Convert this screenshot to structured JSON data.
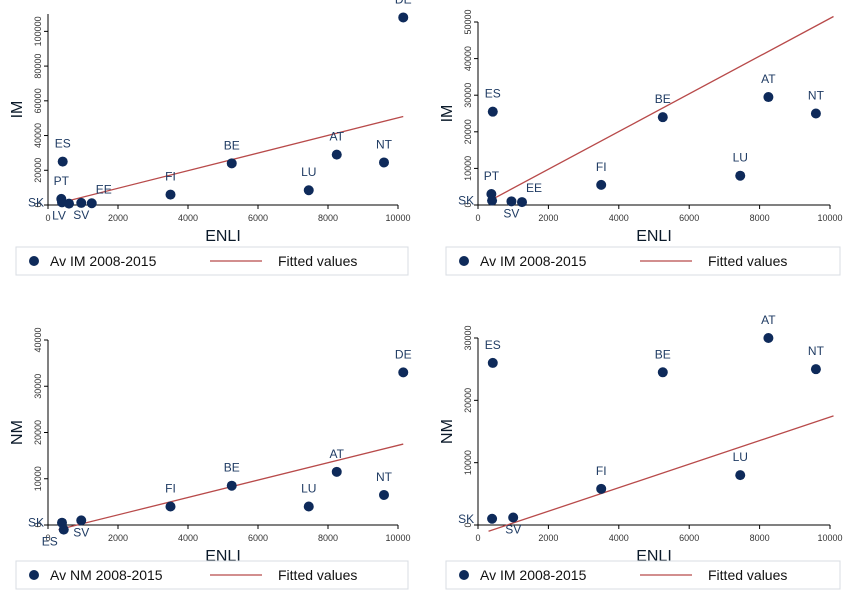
{
  "chart_data": [
    {
      "type": "scatter",
      "xlabel": "ENLI",
      "ylabel": "IM",
      "xlim": [
        0,
        10000
      ],
      "ylim": [
        0,
        110000
      ],
      "xticks": [
        0,
        2000,
        4000,
        6000,
        8000,
        10000
      ],
      "yticks": [
        0,
        20000,
        40000,
        60000,
        80000,
        100000
      ],
      "xtick_labels": [
        "0",
        "2000",
        "4000",
        "6000",
        "8000",
        "10000"
      ],
      "ytick_labels": [
        "0",
        "20000",
        "40000",
        "60000",
        "80000",
        "100000"
      ],
      "legend": [
        "Av IM 2008-2015",
        "Fitted values"
      ],
      "points": [
        {
          "label": "DE",
          "x": 10150,
          "y": 108000
        },
        {
          "label": "ES",
          "x": 420,
          "y": 25000
        },
        {
          "label": "BE",
          "x": 5250,
          "y": 24000
        },
        {
          "label": "AT",
          "x": 8250,
          "y": 29000
        },
        {
          "label": "NT",
          "x": 9600,
          "y": 24500
        },
        {
          "label": "LU",
          "x": 7450,
          "y": 8500
        },
        {
          "label": "FI",
          "x": 3500,
          "y": 6000
        },
        {
          "label": "PT",
          "x": 380,
          "y": 3500
        },
        {
          "label": "SK",
          "x": 400,
          "y": 1500
        },
        {
          "label": "LV",
          "x": 600,
          "y": 800
        },
        {
          "label": "SV",
          "x": 950,
          "y": 1200
        },
        {
          "label": "EE",
          "x": 1250,
          "y": 1000
        }
      ],
      "fit": [
        [
          300,
          1000
        ],
        [
          10150,
          51000
        ]
      ]
    },
    {
      "type": "scatter",
      "xlabel": "ENLI",
      "ylabel": "IM",
      "xlim": [
        0,
        10000
      ],
      "ylim": [
        0,
        50000
      ],
      "xticks": [
        0,
        2000,
        4000,
        6000,
        8000,
        10000
      ],
      "yticks": [
        0,
        10000,
        20000,
        30000,
        40000,
        50000
      ],
      "xtick_labels": [
        "0",
        "2000",
        "4000",
        "6000",
        "8000",
        "10000"
      ],
      "ytick_labels": [
        "0",
        "10000",
        "20000",
        "30000",
        "40000",
        "50000"
      ],
      "legend": [
        "Av IM 2008-2015",
        "Fitted values"
      ],
      "points": [
        {
          "label": "ES",
          "x": 420,
          "y": 25500
        },
        {
          "label": "BE",
          "x": 5250,
          "y": 24000
        },
        {
          "label": "AT",
          "x": 8250,
          "y": 29500
        },
        {
          "label": "NT",
          "x": 9600,
          "y": 25000
        },
        {
          "label": "LU",
          "x": 7450,
          "y": 8000
        },
        {
          "label": "FI",
          "x": 3500,
          "y": 5500
        },
        {
          "label": "PT",
          "x": 380,
          "y": 3000
        },
        {
          "label": "SK",
          "x": 400,
          "y": 1200
        },
        {
          "label": "SV",
          "x": 950,
          "y": 1000
        },
        {
          "label": "EE",
          "x": 1250,
          "y": 800
        }
      ],
      "fit": [
        [
          300,
          1000
        ],
        [
          10100,
          51500
        ]
      ]
    },
    {
      "type": "scatter",
      "xlabel": "ENLI",
      "ylabel": "NM",
      "xlim": [
        0,
        10000
      ],
      "ylim": [
        0,
        40000
      ],
      "xticks": [
        0,
        2000,
        4000,
        6000,
        8000,
        10000
      ],
      "yticks": [
        0,
        10000,
        20000,
        30000,
        40000
      ],
      "xtick_labels": [
        "0",
        "2000",
        "4000",
        "6000",
        "8000",
        "10000"
      ],
      "ytick_labels": [
        "0",
        "10000",
        "20000",
        "30000",
        "40000"
      ],
      "legend": [
        "Av NM 2008-2015",
        "Fitted values"
      ],
      "points": [
        {
          "label": "DE",
          "x": 10150,
          "y": 33000
        },
        {
          "label": "AT",
          "x": 8250,
          "y": 11500
        },
        {
          "label": "BE",
          "x": 5250,
          "y": 8500
        },
        {
          "label": "NT",
          "x": 9600,
          "y": 6500
        },
        {
          "label": "FI",
          "x": 3500,
          "y": 4000
        },
        {
          "label": "LU",
          "x": 7450,
          "y": 4000
        },
        {
          "label": "SK",
          "x": 400,
          "y": 500
        },
        {
          "label": "ES",
          "x": 450,
          "y": -1000
        },
        {
          "label": "SV",
          "x": 950,
          "y": 1000
        }
      ],
      "fit": [
        [
          300,
          -1000
        ],
        [
          10150,
          17500
        ]
      ]
    },
    {
      "type": "scatter",
      "xlabel": "ENLI",
      "ylabel": "NM",
      "xlim": [
        0,
        10000
      ],
      "ylim": [
        0,
        30000
      ],
      "xticks": [
        0,
        2000,
        4000,
        6000,
        8000,
        10000
      ],
      "yticks": [
        0,
        10000,
        20000,
        30000
      ],
      "xtick_labels": [
        "0",
        "2000",
        "4000",
        "6000",
        "8000",
        "10000"
      ],
      "ytick_labels": [
        "0",
        "10000",
        "20000",
        "30000"
      ],
      "legend": [
        "Av IM 2008-2015",
        "Fitted values"
      ],
      "points": [
        {
          "label": "AT",
          "x": 8250,
          "y": 30000
        },
        {
          "label": "ES",
          "x": 420,
          "y": 26000
        },
        {
          "label": "BE",
          "x": 5250,
          "y": 24500
        },
        {
          "label": "NT",
          "x": 9600,
          "y": 25000
        },
        {
          "label": "LU",
          "x": 7450,
          "y": 8000
        },
        {
          "label": "FI",
          "x": 3500,
          "y": 5800
        },
        {
          "label": "SK",
          "x": 400,
          "y": 1000
        },
        {
          "label": "SV",
          "x": 1000,
          "y": 1200
        }
      ],
      "fit": [
        [
          300,
          -1000
        ],
        [
          10100,
          17500
        ]
      ]
    }
  ],
  "colors": {
    "point": "#0e2a5a",
    "fit": "#b84a4a",
    "label": "#1f3b63"
  }
}
